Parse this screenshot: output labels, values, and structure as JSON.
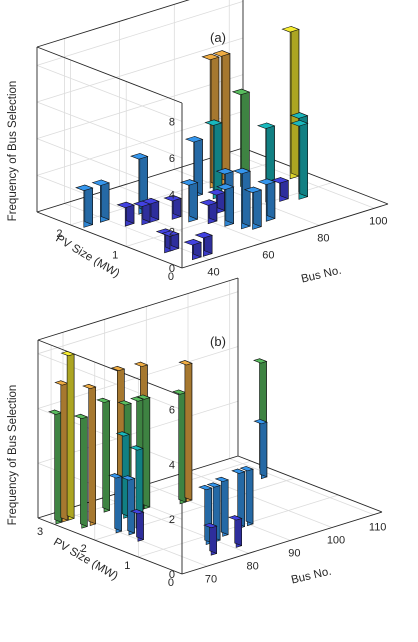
{
  "figure": {
    "background": "#ffffff",
    "axis_color": "#262626",
    "grid_color": "#dcdcdc",
    "colors": {
      "low": "#3b3bc8",
      "mid_low": "#2f86d4",
      "mid": "#16a4a8",
      "green": "#4fa854",
      "orange": "#d59a3c",
      "yellow": "#dcd42c"
    }
  },
  "chart_data": [
    {
      "type": "bar3d",
      "title": "(a)",
      "xlabel": "Bus No.",
      "ylabel": "PV Size (MW)",
      "zlabel": "Frequency of Bus Selection",
      "x_ticks": [
        40,
        60,
        80,
        100
      ],
      "y_ticks": [
        0,
        1,
        2
      ],
      "z_ticks": [
        0,
        2,
        4,
        6,
        8
      ],
      "xlim": [
        30,
        105
      ],
      "ylim": [
        0,
        2.6
      ],
      "zlim": [
        0,
        9
      ],
      "grid": true,
      "bars": [
        {
          "x": 38,
          "y": 0.2,
          "z": 0.8
        },
        {
          "x": 42,
          "y": 0.2,
          "z": 1.0
        },
        {
          "x": 36,
          "y": 0.6,
          "z": 1.0
        },
        {
          "x": 38,
          "y": 0.6,
          "z": 0.8
        },
        {
          "x": 33,
          "y": 1.9,
          "z": 2.0
        },
        {
          "x": 39,
          "y": 1.9,
          "z": 2.0
        },
        {
          "x": 42,
          "y": 1.6,
          "z": 1.0
        },
        {
          "x": 46,
          "y": 1.5,
          "z": 1.0
        },
        {
          "x": 49,
          "y": 1.5,
          "z": 1.0
        },
        {
          "x": 51,
          "y": 1.8,
          "z": 3.0
        },
        {
          "x": 55,
          "y": 1.4,
          "z": 1.0
        },
        {
          "x": 57,
          "y": 1.2,
          "z": 2.0
        },
        {
          "x": 60,
          "y": 1.0,
          "z": 1.0
        },
        {
          "x": 62,
          "y": 0.8,
          "z": 2.0
        },
        {
          "x": 64,
          "y": 0.6,
          "z": 3.0
        },
        {
          "x": 66,
          "y": 0.5,
          "z": 2.0
        },
        {
          "x": 67,
          "y": 1.2,
          "z": 1.0
        },
        {
          "x": 71,
          "y": 1.8,
          "z": 3.0
        },
        {
          "x": 70,
          "y": 1.2,
          "z": 2.0
        },
        {
          "x": 74,
          "y": 1.6,
          "z": 4.0
        },
        {
          "x": 73,
          "y": 0.6,
          "z": 2.0
        },
        {
          "x": 79,
          "y": 1.9,
          "z": 7.0
        },
        {
          "x": 83,
          "y": 1.9,
          "z": 7.0
        },
        {
          "x": 86,
          "y": 1.7,
          "z": 5.0
        },
        {
          "x": 83,
          "y": 1.1,
          "z": 4.0
        },
        {
          "x": 86,
          "y": 1.0,
          "z": 1.0
        },
        {
          "x": 91,
          "y": 0.9,
          "z": 4.0
        },
        {
          "x": 95,
          "y": 1.1,
          "z": 4.0
        },
        {
          "x": 100,
          "y": 1.5,
          "z": 8.0
        }
      ]
    },
    {
      "type": "bar3d",
      "title": "(b)",
      "xlabel": "Bus No.",
      "ylabel": "PV Size (MW)",
      "zlabel": "Frequency of Bus Selection",
      "x_ticks": [
        70,
        80,
        90,
        100,
        110
      ],
      "y_ticks": [
        0,
        1,
        2,
        3
      ],
      "z_ticks": [
        0,
        2,
        4,
        6
      ],
      "xlim": [
        64,
        112
      ],
      "ylim": [
        0,
        3.3
      ],
      "zlim": [
        0,
        6.5
      ],
      "grid": true,
      "bars": [
        {
          "x": 65,
          "y": 3.0,
          "z": 4.0
        },
        {
          "x": 66.5,
          "y": 3.0,
          "z": 5.0
        },
        {
          "x": 68,
          "y": 3.0,
          "z": 6.0
        },
        {
          "x": 67,
          "y": 2.6,
          "z": 4.0
        },
        {
          "x": 69,
          "y": 2.6,
          "z": 5.0
        },
        {
          "x": 70,
          "y": 2.1,
          "z": 2.0
        },
        {
          "x": 70,
          "y": 1.6,
          "z": 1.0
        },
        {
          "x": 71,
          "y": 1.9,
          "z": 2.0
        },
        {
          "x": 73,
          "y": 1.9,
          "z": 3.0
        },
        {
          "x": 75.5,
          "y": 2.9,
          "z": 4.0
        },
        {
          "x": 76,
          "y": 2.5,
          "z": 3.0
        },
        {
          "x": 77.5,
          "y": 2.6,
          "z": 4.0
        },
        {
          "x": 79,
          "y": 2.9,
          "z": 5.0
        },
        {
          "x": 80.5,
          "y": 2.6,
          "z": 4.0
        },
        {
          "x": 82,
          "y": 2.6,
          "z": 4.0
        },
        {
          "x": 83.5,
          "y": 2.8,
          "z": 5.0
        },
        {
          "x": 75,
          "y": 0.4,
          "z": 1.0
        },
        {
          "x": 78,
          "y": 0.8,
          "z": 2.0
        },
        {
          "x": 80,
          "y": 0.8,
          "z": 2.0
        },
        {
          "x": 81,
          "y": 0.4,
          "z": 1.0
        },
        {
          "x": 83,
          "y": 0.9,
          "z": 2.0
        },
        {
          "x": 88.5,
          "y": 2.4,
          "z": 4.0
        },
        {
          "x": 90,
          "y": 2.4,
          "z": 5.0
        },
        {
          "x": 88,
          "y": 1.0,
          "z": 2.0
        },
        {
          "x": 90,
          "y": 1.0,
          "z": 2.0
        },
        {
          "x": 108,
          "y": 2.4,
          "z": 2.0
        },
        {
          "x": 110,
          "y": 2.6,
          "z": 4.0
        }
      ]
    }
  ]
}
